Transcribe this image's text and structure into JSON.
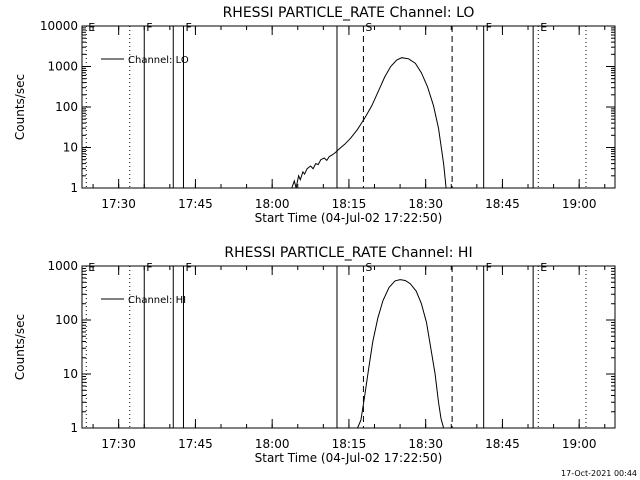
{
  "footer": {
    "timestamp": "17-Oct-2021 00:44"
  },
  "chart_data": [
    {
      "type": "line",
      "title": "RHESSI PARTICLE_RATE Channel: LO",
      "xlabel": "Start Time (04-Jul-02 17:22:50)",
      "ylabel": "Counts/sec",
      "yscale": "log",
      "ylim": [
        1,
        10000
      ],
      "xlim": [
        "17:22:50",
        "19:07:00"
      ],
      "yticks": [
        "1",
        "10",
        "100",
        "1000",
        "10000"
      ],
      "xticks": [
        "17:30",
        "17:45",
        "18:00",
        "18:15",
        "18:30",
        "18:45",
        "19:00"
      ],
      "legend": {
        "position": "top-left",
        "label": "Channel: LO"
      },
      "flags": [
        {
          "time": "17:23:40",
          "label": "E",
          "style": "dotted"
        },
        {
          "time": "17:32:10",
          "label": "",
          "style": "dotted"
        },
        {
          "time": "17:35:00",
          "label": "F",
          "style": "solid"
        },
        {
          "time": "17:40:40",
          "label": "",
          "style": "solid"
        },
        {
          "time": "17:42:40",
          "label": "F",
          "style": "solid"
        },
        {
          "time": "18:12:40",
          "label": "",
          "style": "solid"
        },
        {
          "time": "18:17:50",
          "label": "S",
          "style": "dashed"
        },
        {
          "time": "18:35:10",
          "label": "",
          "style": "dashed"
        },
        {
          "time": "18:41:20",
          "label": "F",
          "style": "solid"
        },
        {
          "time": "18:51:00",
          "label": "",
          "style": "solid"
        },
        {
          "time": "18:52:00",
          "label": "E",
          "style": "dotted"
        },
        {
          "time": "19:01:20",
          "label": "",
          "style": "dotted"
        }
      ],
      "series": [
        {
          "name": "Channel: LO",
          "x": [
            "18:03:50",
            "18:04:20",
            "18:04:40",
            "18:05:10",
            "18:05:30",
            "18:06:00",
            "18:06:20",
            "18:06:50",
            "18:07:30",
            "18:08:00",
            "18:08:30",
            "18:09:00",
            "18:09:30",
            "18:10:10",
            "18:10:40",
            "18:11:10",
            "18:11:40",
            "18:12:20",
            "18:13:00",
            "18:14:10",
            "18:15:20",
            "18:16:40",
            "18:18:10",
            "18:19:30",
            "18:20:50",
            "18:22:00",
            "18:23:10",
            "18:24:20",
            "18:25:20",
            "18:26:40",
            "18:28:00",
            "18:29:10",
            "18:30:20",
            "18:31:30",
            "18:32:30",
            "18:33:30",
            "18:34:00"
          ],
          "y": [
            1,
            1.5,
            1,
            2,
            1.6,
            2.5,
            2.2,
            3,
            3.5,
            3,
            4,
            3.8,
            5,
            5.5,
            4.8,
            6,
            6.5,
            7.5,
            9,
            12,
            17,
            28,
            55,
            110,
            260,
            550,
            1000,
            1450,
            1650,
            1550,
            1200,
            700,
            320,
            110,
            30,
            4,
            1
          ]
        }
      ]
    },
    {
      "type": "line",
      "title": "RHESSI PARTICLE_RATE Channel: HI",
      "xlabel": "Start Time (04-Jul-02 17:22:50)",
      "ylabel": "Counts/sec",
      "yscale": "log",
      "ylim": [
        1,
        1000
      ],
      "xlim": [
        "17:22:50",
        "19:07:00"
      ],
      "yticks": [
        "1",
        "10",
        "100",
        "1000"
      ],
      "xticks": [
        "17:30",
        "17:45",
        "18:00",
        "18:15",
        "18:30",
        "18:45",
        "19:00"
      ],
      "legend": {
        "position": "top-left",
        "label": "Channel: HI"
      },
      "flags": [
        {
          "time": "17:23:40",
          "label": "E",
          "style": "dotted"
        },
        {
          "time": "17:32:10",
          "label": "",
          "style": "dotted"
        },
        {
          "time": "17:35:00",
          "label": "F",
          "style": "solid"
        },
        {
          "time": "17:40:40",
          "label": "",
          "style": "solid"
        },
        {
          "time": "17:42:40",
          "label": "F",
          "style": "solid"
        },
        {
          "time": "18:12:40",
          "label": "",
          "style": "solid"
        },
        {
          "time": "18:17:50",
          "label": "S",
          "style": "dashed"
        },
        {
          "time": "18:35:10",
          "label": "",
          "style": "dashed"
        },
        {
          "time": "18:41:20",
          "label": "F",
          "style": "solid"
        },
        {
          "time": "18:51:00",
          "label": "",
          "style": "solid"
        },
        {
          "time": "18:52:00",
          "label": "E",
          "style": "dotted"
        },
        {
          "time": "19:01:20",
          "label": "",
          "style": "dotted"
        }
      ],
      "series": [
        {
          "name": "Channel: HI",
          "x": [
            "18:16:40",
            "18:17:20",
            "18:18:00",
            "18:18:50",
            "18:19:40",
            "18:20:40",
            "18:21:40",
            "18:22:50",
            "18:24:00",
            "18:25:00",
            "18:26:00",
            "18:27:00",
            "18:28:10",
            "18:29:10",
            "18:30:10",
            "18:31:00",
            "18:31:50",
            "18:32:30",
            "18:33:00",
            "18:33:30"
          ],
          "y": [
            1,
            1.4,
            3.5,
            12,
            40,
            110,
            230,
            400,
            530,
            560,
            540,
            470,
            340,
            200,
            90,
            30,
            10,
            3,
            1.5,
            1
          ]
        }
      ]
    }
  ]
}
